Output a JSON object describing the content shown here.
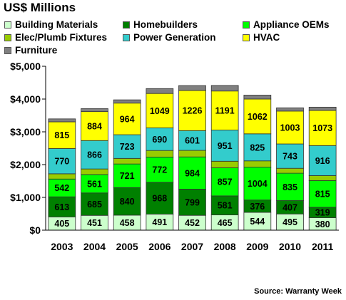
{
  "chart_data": {
    "type": "bar",
    "stacked": true,
    "title": "US$ Millions",
    "source": "Source: Warranty Week",
    "categories": [
      "2003",
      "2004",
      "2005",
      "2006",
      "2007",
      "2008",
      "2009",
      "2010",
      "2011"
    ],
    "ylim": [
      0,
      5000
    ],
    "yticks": [
      0,
      1000,
      2000,
      3000,
      4000,
      5000
    ],
    "ytick_labels": [
      "$0",
      "$1,000",
      "$2,000",
      "$3,000",
      "$4,000",
      "$5,000"
    ],
    "grid": false,
    "legend_position": "top",
    "series": [
      {
        "name": "Building Materials",
        "color": "#ccffcc",
        "labeled": true,
        "values": [
          405,
          451,
          458,
          491,
          452,
          465,
          544,
          495,
          380
        ]
      },
      {
        "name": "Homebuilders",
        "color": "#008000",
        "labeled": true,
        "values": [
          613,
          685,
          840,
          968,
          799,
          581,
          376,
          407,
          319
        ]
      },
      {
        "name": "Appliance OEMs",
        "color": "#00ff00",
        "labeled": true,
        "values": [
          542,
          561,
          721,
          772,
          984,
          857,
          1004,
          835,
          815
        ]
      },
      {
        "name": "Elec/Plumb Fixtures",
        "color": "#99cc00",
        "labeled": false,
        "values": [
          160,
          170,
          170,
          200,
          200,
          200,
          190,
          150,
          150
        ]
      },
      {
        "name": "Power Generation",
        "color": "#33cccc",
        "labeled": true,
        "values": [
          770,
          866,
          723,
          690,
          601,
          951,
          825,
          743,
          916
        ]
      },
      {
        "name": "HVAC",
        "color": "#ffff00",
        "labeled": true,
        "values": [
          815,
          884,
          964,
          1049,
          1226,
          1191,
          1062,
          1003,
          1073
        ]
      },
      {
        "name": "Furniture",
        "color": "#808080",
        "labeled": false,
        "values": [
          90,
          90,
          100,
          150,
          150,
          170,
          120,
          100,
          100
        ]
      }
    ]
  }
}
